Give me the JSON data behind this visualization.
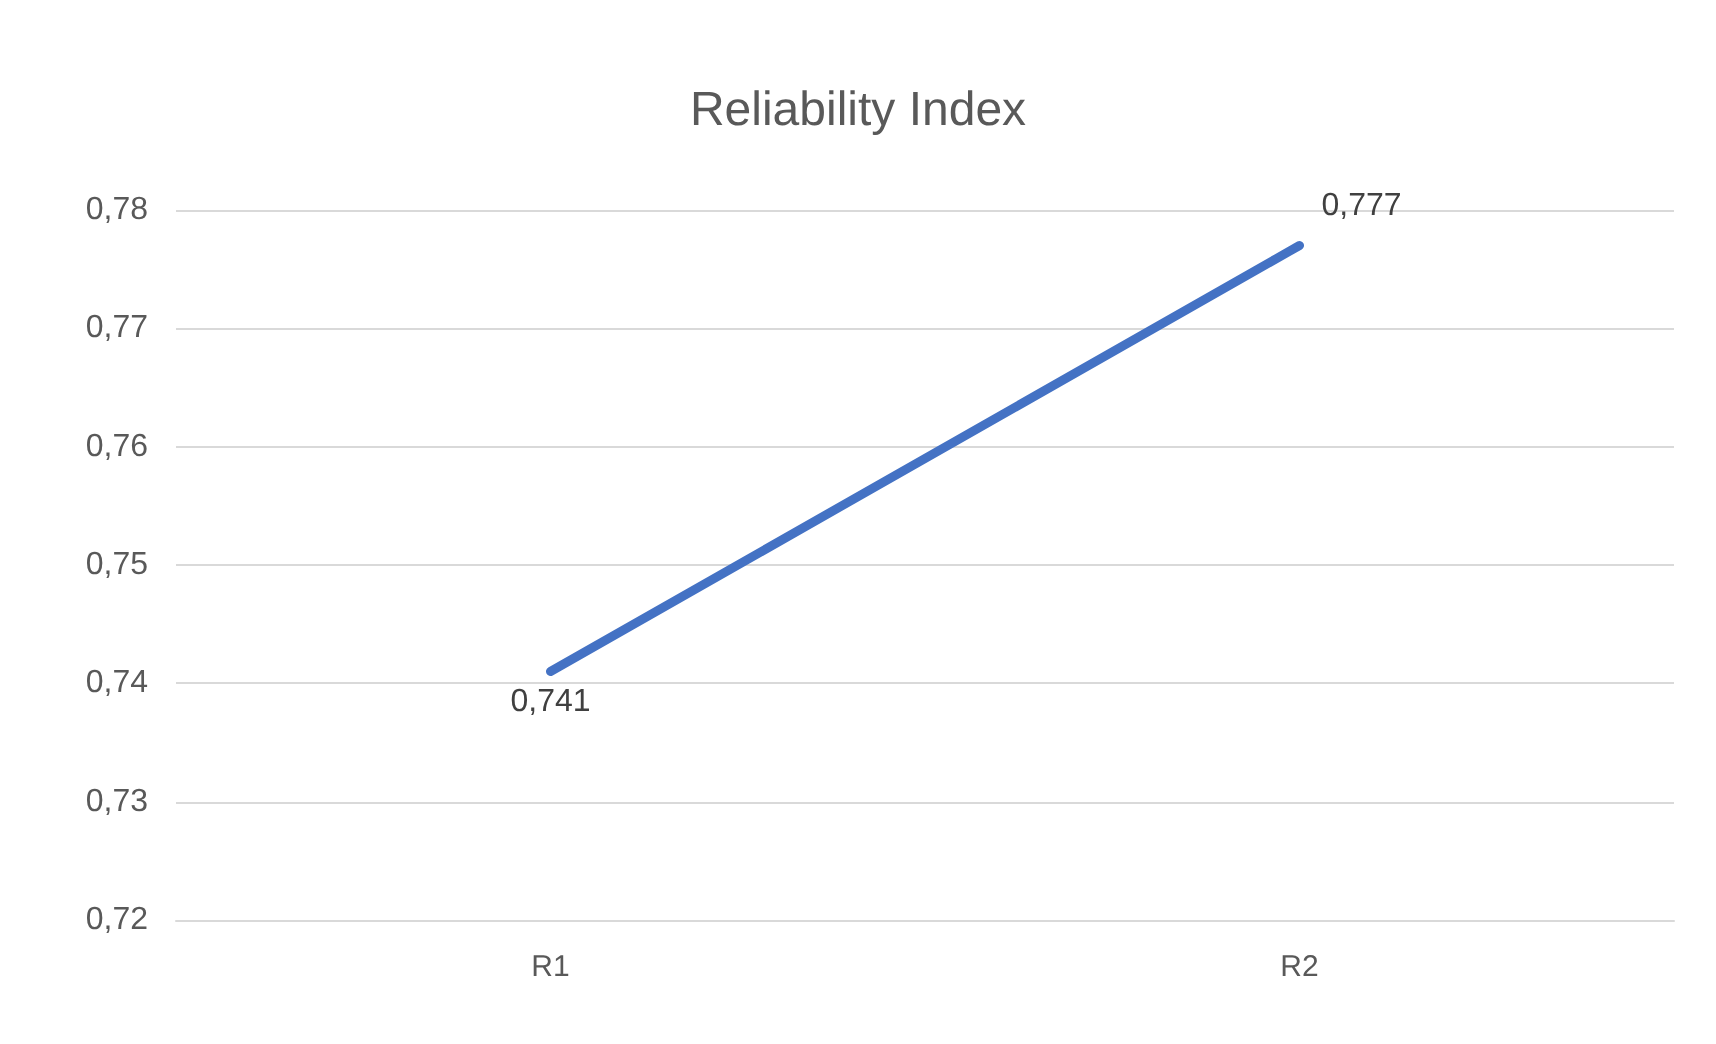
{
  "chart_data": {
    "type": "line",
    "title": "Reliability Index",
    "categories": [
      "R1",
      "R2"
    ],
    "series": [
      {
        "color": "#4472c4",
        "values": [
          0.741,
          0.777
        ],
        "value_labels": [
          "0,741",
          "0,777"
        ]
      }
    ],
    "ylim": [
      0.72,
      0.78
    ],
    "yticks": [
      {
        "value": 0.72,
        "label": "0,72"
      },
      {
        "value": 0.73,
        "label": "0,73"
      },
      {
        "value": 0.74,
        "label": "0,74"
      },
      {
        "value": 0.75,
        "label": "0,75"
      },
      {
        "value": 0.76,
        "label": "0,76"
      },
      {
        "value": 0.77,
        "label": "0,77"
      },
      {
        "value": 0.78,
        "label": "0,78"
      }
    ],
    "grid": "y",
    "marker": "none",
    "line_style": "solid"
  }
}
